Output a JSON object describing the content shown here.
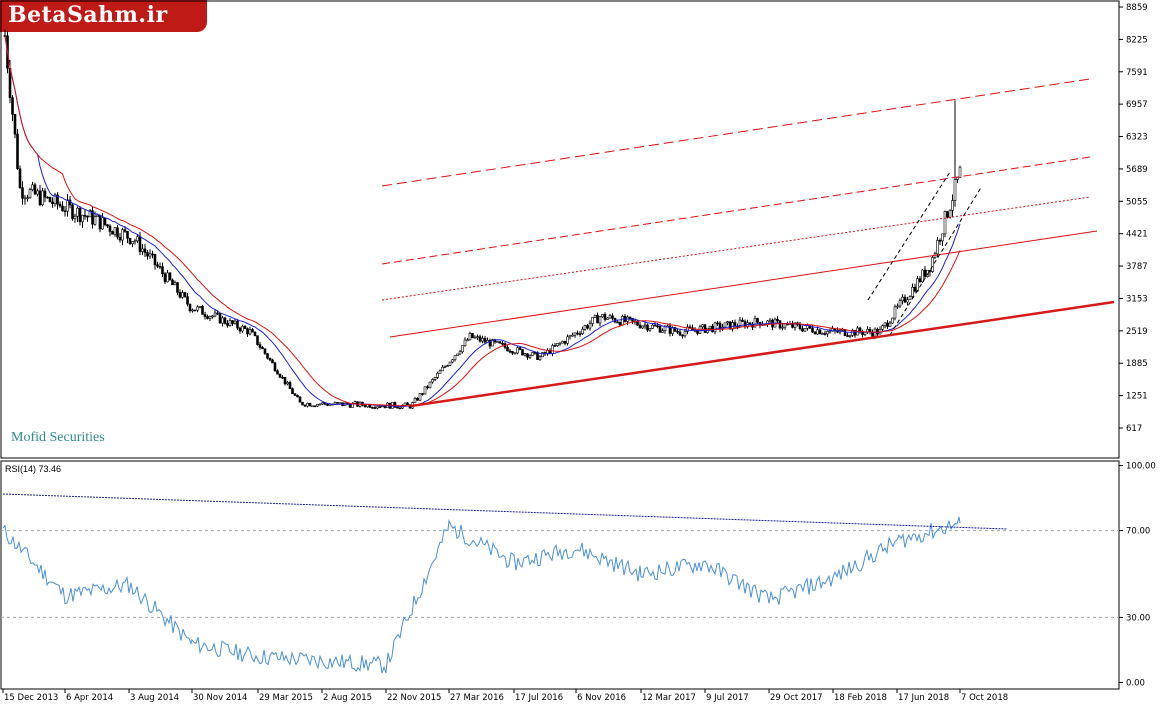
{
  "brand": {
    "logo_text": "BetaSahm.ir",
    "symbol_label": "Mofid Securities"
  },
  "chart_data": [
    {
      "type": "candlestick",
      "title": "",
      "ylim": [
        0,
        8859
      ],
      "y_ticks": [
        617,
        1251,
        1885,
        2519,
        3153,
        3787,
        4421,
        5055,
        5689,
        6323,
        6957,
        7591,
        8225,
        8859
      ],
      "x_tick_labels": [
        "15 Dec 2013",
        "6 Apr 2014",
        "3 Aug 2014",
        "30 Nov 2014",
        "29 Mar 2015",
        "2 Aug 2015",
        "22 Nov 2015",
        "27 Mar 2016",
        "17 Jul 2016",
        "6 Nov 2016",
        "12 Mar 2017",
        "9 Jul 2017",
        "29 Oct 2017",
        "18 Feb 2018",
        "17 Jun 2018",
        "7 Oct 2018"
      ],
      "price_path": {
        "x": [
          "15 Dec 2013",
          "15 Jan 2014",
          "6 Apr 2014",
          "3 Aug 2014",
          "30 Nov 2014",
          "29 Mar 2015",
          "2 Aug 2015",
          "22 Nov 2015",
          "27 Mar 2016",
          "17 Jul 2016",
          "6 Nov 2016",
          "12 Mar 2017",
          "9 Jul 2017",
          "29 Oct 2017",
          "18 Feb 2018",
          "17 Jun 2018",
          "7 Oct 2018"
        ],
        "close": [
          8300,
          5300,
          4700,
          4300,
          3000,
          2500,
          1100,
          1050,
          2400,
          2000,
          2800,
          2500,
          2700,
          2500,
          2500,
          3800,
          5600
        ],
        "high_peak": 7030
      },
      "colors": {
        "candle": "#000000",
        "ma_fast": "#1f1fd6",
        "ma_slow": "#e01010",
        "channel": "#e01010",
        "trend": "#d61a1a",
        "fan": "#000000"
      }
    },
    {
      "type": "line",
      "title": "RSI(14) 73.46",
      "ylim": [
        0,
        100
      ],
      "y_ticks": [
        0.0,
        30.0,
        70.0,
        100.0
      ],
      "levels": [
        30,
        70
      ],
      "x": [
        "15 Dec 2013",
        "6 Apr 2014",
        "3 Aug 2014",
        "30 Nov 2014",
        "29 Mar 2015",
        "2 Aug 2015",
        "22 Nov 2015",
        "27 Mar 2016",
        "17 Jul 2016",
        "6 Nov 2016",
        "12 Mar 2017",
        "9 Jul 2017",
        "29 Oct 2017",
        "18 Feb 2018",
        "17 Jun 2018",
        "7 Oct 2018"
      ],
      "values": [
        70,
        40,
        45,
        18,
        12,
        10,
        8,
        72,
        55,
        62,
        50,
        55,
        38,
        48,
        65,
        73.46
      ],
      "color": "#4a90d6"
    }
  ]
}
